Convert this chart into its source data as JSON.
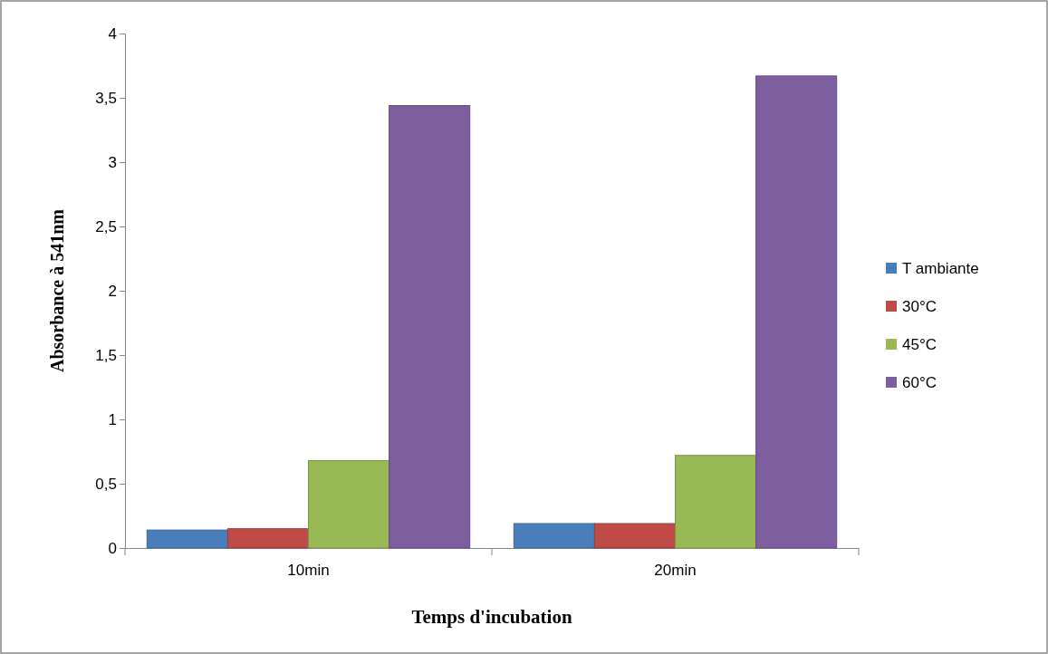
{
  "chart_data": {
    "type": "bar",
    "xlabel": "Temps d'incubation",
    "ylabel": "Absorbance à 541nm",
    "categories": [
      "10min",
      "20min"
    ],
    "series": [
      {
        "name": "T ambiante",
        "color": "#4a7ebb",
        "values": [
          0.14,
          0.19
        ]
      },
      {
        "name": "30°C",
        "color": "#be4b48",
        "values": [
          0.15,
          0.19
        ]
      },
      {
        "name": "45°C",
        "color": "#98b954",
        "values": [
          0.68,
          0.72
        ]
      },
      {
        "name": "60°C",
        "color": "#7d5fa0",
        "values": [
          3.44,
          3.67
        ]
      }
    ],
    "ylim": [
      0,
      4
    ],
    "yticks": [
      0,
      {
        "value": 0.5,
        "label": "0,5"
      },
      1,
      {
        "value": 1.5,
        "label": "1,5"
      },
      2,
      {
        "value": 2.5,
        "label": "2,5"
      },
      3,
      {
        "value": 3.5,
        "label": "3,5"
      },
      4
    ],
    "legend": "right"
  }
}
